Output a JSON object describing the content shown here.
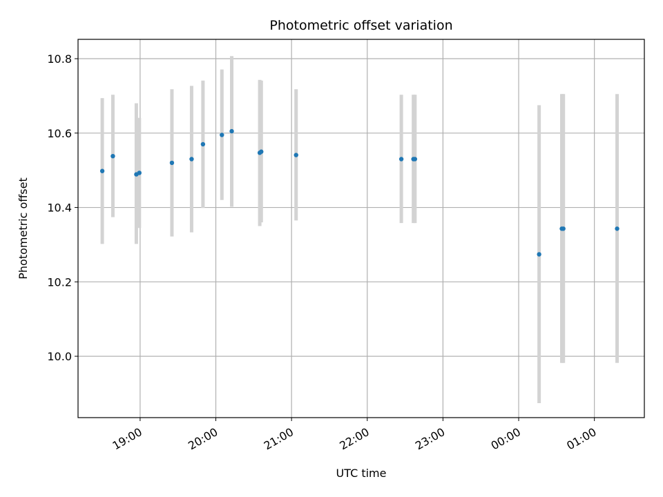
{
  "chart_data": {
    "type": "scatter",
    "title": "Photometric offset variation",
    "xlabel": "UTC time",
    "ylabel": "Photometric offset",
    "x_unit": "UTC time (hours after midnight of first night, values beyond 24 are next day)",
    "xlim_hours": [
      18.18,
      25.66
    ],
    "ylim": [
      9.835,
      10.852
    ],
    "grid": true,
    "legend": "none",
    "x_ticks": [
      {
        "label": "19:00",
        "hour": 19
      },
      {
        "label": "20:00",
        "hour": 20
      },
      {
        "label": "21:00",
        "hour": 21
      },
      {
        "label": "22:00",
        "hour": 22
      },
      {
        "label": "23:00",
        "hour": 23
      },
      {
        "label": "00:00",
        "hour": 24
      },
      {
        "label": "01:00",
        "hour": 25
      }
    ],
    "y_ticks": [
      {
        "label": "10.0",
        "value": 10.0
      },
      {
        "label": "10.2",
        "value": 10.2
      },
      {
        "label": "10.4",
        "value": 10.4
      },
      {
        "label": "10.6",
        "value": 10.6
      },
      {
        "label": "10.8",
        "value": 10.8
      }
    ],
    "colors": {
      "point": "#1f77b4",
      "error_bar": "#d3d3d3",
      "grid": "#b0b0b0"
    },
    "points": [
      {
        "time": "18:30",
        "hour": 18.5,
        "y": 10.498,
        "ylo": 10.302,
        "yhi": 10.694
      },
      {
        "time": "18:38",
        "hour": 18.64,
        "y": 10.538,
        "ylo": 10.374,
        "yhi": 10.703
      },
      {
        "time": "18:57",
        "hour": 18.95,
        "y": 10.489,
        "ylo": 10.302,
        "yhi": 10.68
      },
      {
        "time": "18:59",
        "hour": 18.99,
        "y": 10.493,
        "ylo": 10.345,
        "yhi": 10.641
      },
      {
        "time": "19:25",
        "hour": 19.42,
        "y": 10.52,
        "ylo": 10.322,
        "yhi": 10.718
      },
      {
        "time": "19:41",
        "hour": 19.68,
        "y": 10.53,
        "ylo": 10.333,
        "yhi": 10.727
      },
      {
        "time": "19:50",
        "hour": 19.83,
        "y": 10.57,
        "ylo": 10.399,
        "yhi": 10.741
      },
      {
        "time": "20:05",
        "hour": 20.08,
        "y": 10.595,
        "ylo": 10.42,
        "yhi": 10.771
      },
      {
        "time": "20:13",
        "hour": 20.21,
        "y": 10.605,
        "ylo": 10.402,
        "yhi": 10.807
      },
      {
        "time": "20:35",
        "hour": 20.58,
        "y": 10.547,
        "ylo": 10.35,
        "yhi": 10.743
      },
      {
        "time": "20:36",
        "hour": 20.6,
        "y": 10.55,
        "ylo": 10.36,
        "yhi": 10.741
      },
      {
        "time": "21:04",
        "hour": 21.06,
        "y": 10.541,
        "ylo": 10.365,
        "yhi": 10.718
      },
      {
        "time": "22:27",
        "hour": 22.45,
        "y": 10.53,
        "ylo": 10.358,
        "yhi": 10.703
      },
      {
        "time": "22:37",
        "hour": 22.61,
        "y": 10.53,
        "ylo": 10.358,
        "yhi": 10.703
      },
      {
        "time": "22:38",
        "hour": 22.63,
        "y": 10.53,
        "ylo": 10.358,
        "yhi": 10.703
      },
      {
        "time": "00:16",
        "hour": 24.27,
        "y": 10.274,
        "ylo": 9.874,
        "yhi": 10.675
      },
      {
        "time": "00:34",
        "hour": 24.57,
        "y": 10.343,
        "ylo": 9.982,
        "yhi": 10.705
      },
      {
        "time": "00:35",
        "hour": 24.59,
        "y": 10.343,
        "ylo": 9.982,
        "yhi": 10.705
      },
      {
        "time": "01:18",
        "hour": 25.3,
        "y": 10.343,
        "ylo": 9.982,
        "yhi": 10.705
      }
    ]
  }
}
